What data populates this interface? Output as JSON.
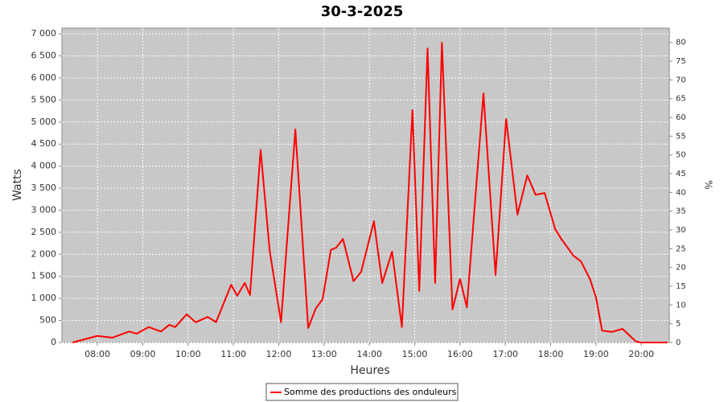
{
  "chart_data": {
    "type": "line",
    "title": "30-3-2025",
    "x_label": "Heures",
    "y_label": "Watts",
    "y2_label": "%",
    "x": [
      "07:27",
      "08:00",
      "08:20",
      "08:42",
      "08:52",
      "09:08",
      "09:24",
      "09:35",
      "09:43",
      "09:58",
      "10:10",
      "10:26",
      "10:37",
      "10:57",
      "11:05",
      "11:15",
      "11:22",
      "11:36",
      "11:48",
      "12:03",
      "12:22",
      "12:39",
      "12:49",
      "12:58",
      "13:09",
      "13:16",
      "13:25",
      "13:39",
      "13:49",
      "14:06",
      "14:17",
      "14:30",
      "14:43",
      "14:57",
      "15:06",
      "15:17",
      "15:27",
      "15:36",
      "15:50",
      "16:00",
      "16:09",
      "16:31",
      "16:47",
      "17:01",
      "17:16",
      "17:29",
      "17:40",
      "17:52",
      "18:06",
      "18:14",
      "18:30",
      "18:40",
      "18:52",
      "19:00",
      "19:08",
      "19:21",
      "19:35",
      "19:53",
      "20:00",
      "20:35"
    ],
    "series": [
      {
        "name": "Somme des productions des onduleurs",
        "color": "#ff0000",
        "values": [
          0,
          150,
          110,
          250,
          200,
          350,
          250,
          400,
          350,
          640,
          460,
          580,
          460,
          1310,
          1060,
          1350,
          1080,
          4370,
          2080,
          460,
          4830,
          330,
          770,
          980,
          2100,
          2150,
          2350,
          1390,
          1600,
          2750,
          1350,
          2060,
          350,
          5270,
          1170,
          6670,
          1350,
          6800,
          750,
          1440,
          800,
          5650,
          1530,
          5070,
          2900,
          3790,
          3350,
          3390,
          2570,
          2350,
          1970,
          1840,
          1440,
          1020,
          270,
          240,
          310,
          20,
          0,
          0
        ]
      }
    ],
    "xlim": [
      "07:13",
      "20:37"
    ],
    "xticks": [
      "08:00",
      "09:00",
      "10:00",
      "11:00",
      "12:00",
      "13:00",
      "14:00",
      "15:00",
      "16:00",
      "17:00",
      "18:00",
      "19:00",
      "20:00"
    ],
    "ylim": [
      0,
      7130
    ],
    "yticks": [
      0,
      500,
      {
        "value": 1000,
        "label": "1 000"
      },
      {
        "value": 1500,
        "label": "1 500"
      },
      {
        "value": 2000,
        "label": "2 000"
      },
      {
        "value": 2500,
        "label": "2 500"
      },
      {
        "value": 3000,
        "label": "3 000"
      },
      {
        "value": 3500,
        "label": "3 500"
      },
      {
        "value": 4000,
        "label": "4 000"
      },
      {
        "value": 4500,
        "label": "4 500"
      },
      {
        "value": 5000,
        "label": "5 000"
      },
      {
        "value": 5500,
        "label": "5 500"
      },
      {
        "value": 6000,
        "label": "6 000"
      },
      {
        "value": 6500,
        "label": "6 500"
      },
      {
        "value": 7000,
        "label": "7 000"
      }
    ],
    "y2lim": [
      0,
      83.8
    ],
    "y2ticks": [
      0,
      5,
      10,
      15,
      20,
      25,
      30,
      35,
      40,
      45,
      50,
      55,
      60,
      65,
      70,
      75,
      80
    ],
    "grid": true
  }
}
